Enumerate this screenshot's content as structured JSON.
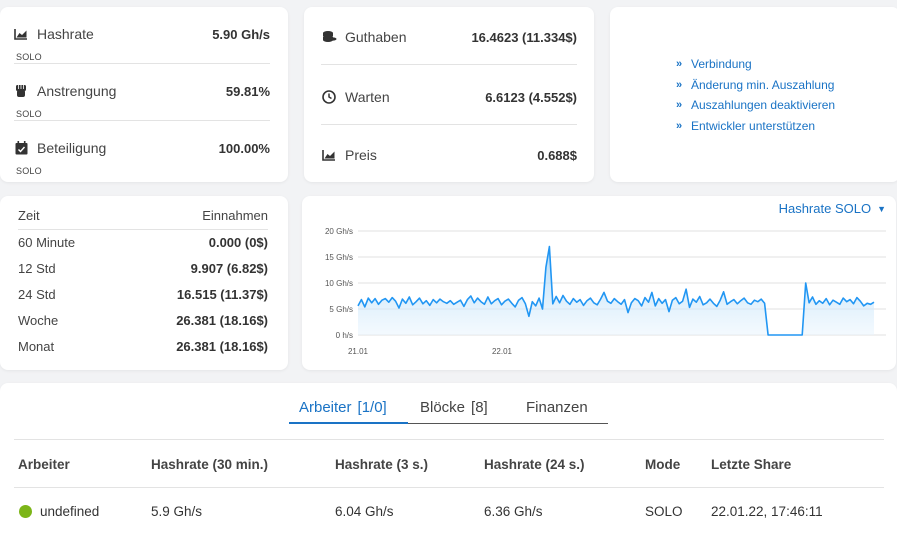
{
  "stats": [
    {
      "label": "Hashrate",
      "value": "5.90 Gh/s",
      "sub": "SOLO",
      "icon": "area-chart-icon"
    },
    {
      "label": "Anstrengung",
      "value": "59.81%",
      "sub": "SOLO",
      "icon": "fist-icon"
    },
    {
      "label": "Beteiligung",
      "value": "100.00%",
      "sub": "SOLO",
      "icon": "calendar-check-icon"
    }
  ],
  "balance": [
    {
      "label": "Guthaben",
      "value": "16.4623 (11.334$)",
      "icon": "coins-icon"
    },
    {
      "label": "Warten",
      "value": "6.6123 (4.552$)",
      "icon": "clock-icon"
    },
    {
      "label": "Preis",
      "value": "0.688$",
      "icon": "area-chart-icon"
    }
  ],
  "links": [
    {
      "label": "Verbindung"
    },
    {
      "label": "Änderung min. Auszahlung"
    },
    {
      "label": "Auszahlungen deaktivieren"
    },
    {
      "label": "Entwickler unterstützen"
    }
  ],
  "earnings": {
    "header": {
      "left": "Zeit",
      "right": "Einnahmen"
    },
    "rows": [
      {
        "period": "60 Minute",
        "amount": "0.000 (0$)"
      },
      {
        "period": "12 Std",
        "amount": "9.907 (6.82$)"
      },
      {
        "period": "24 Std",
        "amount": "16.515 (11.37$)"
      },
      {
        "period": "Woche",
        "amount": "26.381 (18.16$)"
      },
      {
        "period": "Monat",
        "amount": "26.381 (18.16$)"
      }
    ]
  },
  "chart_selector": "Hashrate SOLO",
  "chart_data": {
    "type": "area",
    "ylim": [
      0,
      20
    ],
    "yticks": [
      "20 Gh/s",
      "15 Gh/s",
      "10 Gh/s",
      "5 Gh/s",
      "0 h/s"
    ],
    "xticks": [
      "21.01",
      "22.01"
    ],
    "values": [
      5.6,
      6.8,
      5.4,
      7.1,
      6.2,
      7.0,
      5.9,
      6.7,
      7.0,
      6.3,
      7.2,
      6.5,
      5.2,
      6.9,
      6.1,
      7.3,
      5.8,
      6.4,
      7.1,
      6.0,
      6.6,
      5.7,
      6.8,
      6.2,
      6.9,
      6.4,
      6.1,
      6.6,
      5.9,
      6.3,
      6.7,
      5.5,
      6.8,
      7.5,
      6.2,
      7.1,
      6.4,
      5.9,
      7.3,
      6.0,
      6.6,
      7.0,
      5.8,
      6.5,
      6.9,
      6.1,
      5.4,
      6.7,
      7.2,
      6.0,
      3.6,
      6.4,
      5.6,
      7.1,
      5.0,
      13.0,
      17.0,
      6.0,
      7.4,
      6.2,
      7.6,
      6.5,
      5.9,
      7.0,
      6.3,
      6.8,
      5.7,
      6.6,
      7.1,
      6.2,
      5.8,
      6.9,
      8.2,
      6.5,
      6.1,
      7.0,
      6.4,
      5.9,
      6.8,
      4.3,
      6.2,
      7.0,
      6.6,
      5.6,
      7.2,
      6.3,
      8.2,
      5.6,
      7.0,
      6.1,
      6.8,
      4.5,
      6.7,
      7.2,
      6.0,
      6.5,
      8.8,
      5.3,
      6.9,
      6.3,
      7.4,
      5.8,
      6.2,
      6.9,
      6.1,
      5.5,
      6.7,
      8.3,
      5.9,
      6.4,
      6.8,
      6.0,
      6.6,
      7.1,
      6.2,
      5.9,
      6.7,
      6.4,
      6.9,
      6.1,
      0,
      0,
      0,
      0,
      0,
      0,
      0,
      0,
      0,
      0,
      0,
      10.0,
      6.2,
      7.3,
      5.9,
      6.6,
      6.1,
      7.0,
      5.8,
      6.7,
      6.3,
      5.9,
      7.1,
      6.4,
      6.8,
      6.0,
      7.2,
      6.5,
      5.6,
      6.1,
      5.9,
      6.3
    ]
  },
  "tabs": [
    {
      "label": "Arbeiter",
      "count": "[1/0]"
    },
    {
      "label": "Blöcke",
      "count": "[8]"
    },
    {
      "label": "Finanzen",
      "count": ""
    }
  ],
  "table": {
    "headers": [
      "Arbeiter",
      "Hashrate (30 min.)",
      "Hashrate (3 s.)",
      "Hashrate (24 s.)",
      "Mode",
      "Letzte Share"
    ],
    "rows": [
      {
        "name": "undefined",
        "hr30": "5.9 Gh/s",
        "hr3": "6.04 Gh/s",
        "hr24": "6.36 Gh/s",
        "mode": "SOLO",
        "last": "22.01.22, 17:46:11"
      }
    ]
  },
  "colors": {
    "accent": "#1a73c5",
    "line": "#2196f3",
    "online": "#7cb518"
  }
}
